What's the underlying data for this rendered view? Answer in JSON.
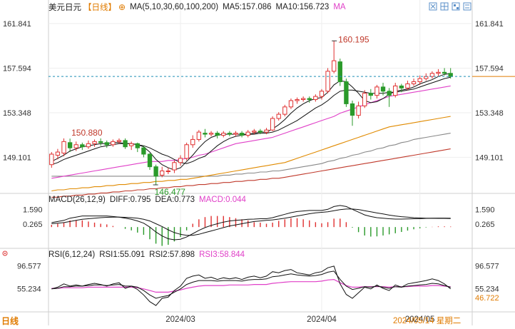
{
  "header": {
    "pair": "美元日元",
    "period": "【日线】",
    "ma_label": "MA(5,10,30,60,100,200)",
    "ma5": "MA5:157.086",
    "ma10": "MA10:156.723",
    "ma_more": "MA"
  },
  "macd_header": {
    "label": "MACD(26,12,9)",
    "diff": "DIFF:0.795",
    "dea": "DEA:0.773",
    "macd": "MACD:0.044"
  },
  "rsi_header": {
    "label": "RSI(6,12,24)",
    "rsi1": "RSI1:55.091",
    "rsi2": "RSI2:57.898",
    "rsi3": "RSI3:58.844"
  },
  "bottom": {
    "logo": "日线",
    "date_tail": "2024/05/14 星期二"
  },
  "colors": {
    "up": "#e03030",
    "down": "#2a9a2a",
    "ma5": "#111111",
    "ma10": "#111111",
    "ma30": "#e040c8",
    "ma60": "#e08a00",
    "ma100": "#888888",
    "ma200": "#c0392b",
    "dashed": "#1e8fb5",
    "orange": "#e07b00"
  },
  "icons": [
    "chart-type-icon",
    "grid-icon",
    "layout-icon",
    "settings-icon"
  ],
  "chart_data": [
    {
      "type": "candlestick",
      "title": "美元日元 日线",
      "y_ticks": [
        "161.841",
        "157.594",
        "153.348",
        "149.101"
      ],
      "y_ticks_values": [
        161.841,
        157.594,
        153.348,
        149.101
      ],
      "ylim": [
        146.0,
        163.0
      ],
      "x_labels": [
        "2024/03",
        "2024/04",
        "2024/05"
      ],
      "annotations": [
        {
          "label": "160.195",
          "value": 160.195,
          "type": "high"
        },
        {
          "label": "150.880",
          "value": 150.88,
          "type": "high"
        },
        {
          "label": "146.477",
          "value": 146.477,
          "type": "low"
        }
      ],
      "current_price": 156.8,
      "candles": [
        [
          148.4,
          149.4,
          148.1,
          149.6
        ],
        [
          149.3,
          149.6,
          148.9,
          149.9
        ],
        [
          149.5,
          150.6,
          149.2,
          150.9
        ],
        [
          150.5,
          150.0,
          149.6,
          150.88
        ],
        [
          150.0,
          150.3,
          149.7,
          150.6
        ],
        [
          150.3,
          150.1,
          149.8,
          150.5
        ],
        [
          150.1,
          150.4,
          149.9,
          150.7
        ],
        [
          150.4,
          150.6,
          150.1,
          150.8
        ],
        [
          150.6,
          150.5,
          150.2,
          150.9
        ],
        [
          150.5,
          150.3,
          150.0,
          150.7
        ],
        [
          150.3,
          150.6,
          150.1,
          150.8
        ],
        [
          150.6,
          150.7,
          150.4,
          150.9
        ],
        [
          150.7,
          150.1,
          149.9,
          150.9
        ],
        [
          150.2,
          150.4,
          149.8,
          150.6
        ],
        [
          150.4,
          150.0,
          149.6,
          150.5
        ],
        [
          150.0,
          149.4,
          149.1,
          150.2
        ],
        [
          149.4,
          148.2,
          147.9,
          149.5
        ],
        [
          148.2,
          147.3,
          146.477,
          148.4
        ],
        [
          147.4,
          147.8,
          147.2,
          148.2
        ],
        [
          147.8,
          147.8,
          147.5,
          148.1
        ],
        [
          147.9,
          148.6,
          147.6,
          148.8
        ],
        [
          148.6,
          149.0,
          148.3,
          149.3
        ],
        [
          149.0,
          150.3,
          148.8,
          150.5
        ],
        [
          150.3,
          150.8,
          150.0,
          151.2
        ],
        [
          150.8,
          151.5,
          150.6,
          151.7
        ],
        [
          151.4,
          151.3,
          151.0,
          151.8
        ],
        [
          151.3,
          151.4,
          151.1,
          151.6
        ],
        [
          151.4,
          151.2,
          150.9,
          151.6
        ],
        [
          151.2,
          151.4,
          151.0,
          151.6
        ],
        [
          151.4,
          151.3,
          151.1,
          151.6
        ],
        [
          151.3,
          151.4,
          151.1,
          151.6
        ],
        [
          151.4,
          151.2,
          151.0,
          151.6
        ],
        [
          151.2,
          151.5,
          151.0,
          151.7
        ],
        [
          151.5,
          151.6,
          151.3,
          151.8
        ],
        [
          151.6,
          151.5,
          151.3,
          151.8
        ],
        [
          151.5,
          151.7,
          151.3,
          151.9
        ],
        [
          151.7,
          152.8,
          151.6,
          153.0
        ],
        [
          152.8,
          153.2,
          152.6,
          153.4
        ],
        [
          153.2,
          153.9,
          153.0,
          154.1
        ],
        [
          153.9,
          154.5,
          153.7,
          154.7
        ],
        [
          154.5,
          154.6,
          154.2,
          154.8
        ],
        [
          154.6,
          154.7,
          154.4,
          154.9
        ],
        [
          154.7,
          154.6,
          154.3,
          154.9
        ],
        [
          154.6,
          154.9,
          154.4,
          155.1
        ],
        [
          154.9,
          155.4,
          154.6,
          155.6
        ],
        [
          155.4,
          157.3,
          155.2,
          157.6
        ],
        [
          157.3,
          158.3,
          157.1,
          160.195
        ],
        [
          158.2,
          156.3,
          155.9,
          158.5
        ],
        [
          156.3,
          154.2,
          153.9,
          156.6
        ],
        [
          154.2,
          153.1,
          152.1,
          154.5
        ],
        [
          153.1,
          154.0,
          152.8,
          154.4
        ],
        [
          154.0,
          155.2,
          153.8,
          155.5
        ],
        [
          155.2,
          155.0,
          154.6,
          155.6
        ],
        [
          155.0,
          155.8,
          154.7,
          156.0
        ],
        [
          155.8,
          155.4,
          155.0,
          156.2
        ],
        [
          155.4,
          155.0,
          153.9,
          155.7
        ],
        [
          155.0,
          155.9,
          154.8,
          156.2
        ],
        [
          155.9,
          155.7,
          155.3,
          156.1
        ],
        [
          155.7,
          156.1,
          155.5,
          156.4
        ],
        [
          156.1,
          156.3,
          155.9,
          156.6
        ],
        [
          156.3,
          156.6,
          156.0,
          156.9
        ],
        [
          156.6,
          156.8,
          156.4,
          157.1
        ],
        [
          156.8,
          157.1,
          156.6,
          157.3
        ],
        [
          157.1,
          157.2,
          156.8,
          157.5
        ],
        [
          157.2,
          157.1,
          156.9,
          157.6
        ],
        [
          157.1,
          156.8,
          156.6,
          157.6
        ]
      ],
      "candle_fields": [
        "open",
        "close",
        "low",
        "high"
      ],
      "ma_lines": {
        "ma5": [
          148.7,
          149.0,
          149.3,
          149.7,
          149.9,
          150.1,
          150.2,
          150.3,
          150.4,
          150.4,
          150.5,
          150.5,
          150.4,
          150.4,
          150.3,
          150.1,
          149.6,
          148.9,
          148.4,
          148.1,
          147.9,
          148.1,
          148.7,
          149.3,
          150.0,
          150.6,
          151.0,
          151.2,
          151.3,
          151.3,
          151.3,
          151.3,
          151.3,
          151.4,
          151.5,
          151.5,
          151.8,
          152.2,
          152.7,
          153.3,
          153.8,
          154.2,
          154.5,
          154.7,
          154.8,
          155.3,
          156.0,
          156.4,
          156.3,
          155.8,
          155.2,
          154.5,
          154.3,
          154.4,
          154.7,
          155.1,
          155.4,
          155.5,
          155.6,
          155.8,
          156.1,
          156.3,
          156.5,
          156.8,
          157.0,
          157.086
        ],
        "ma10": [
          148.4,
          148.6,
          148.9,
          149.1,
          149.3,
          149.5,
          149.7,
          149.9,
          150.1,
          150.2,
          150.3,
          150.4,
          150.4,
          150.4,
          150.3,
          150.2,
          150.0,
          149.7,
          149.4,
          149.2,
          148.9,
          148.6,
          148.5,
          148.7,
          149.0,
          149.2,
          149.7,
          150.2,
          150.6,
          150.9,
          151.1,
          151.2,
          151.3,
          151.3,
          151.4,
          151.4,
          151.5,
          151.7,
          152.0,
          152.3,
          152.6,
          153.0,
          153.4,
          153.8,
          154.1,
          154.5,
          155.0,
          155.4,
          155.5,
          155.5,
          155.4,
          155.3,
          155.2,
          155.2,
          155.2,
          155.3,
          155.3,
          155.4,
          155.5,
          155.6,
          155.8,
          156.0,
          156.2,
          156.4,
          156.6,
          156.723
        ],
        "ma30": [
          147.1,
          147.2,
          147.3,
          147.4,
          147.5,
          147.6,
          147.7,
          147.8,
          147.9,
          148.0,
          148.1,
          148.2,
          148.3,
          148.4,
          148.5,
          148.6,
          148.7,
          148.7,
          148.7,
          148.8,
          148.8,
          148.9,
          149.0,
          149.1,
          149.3,
          149.4,
          149.6,
          149.8,
          150.0,
          150.2,
          150.4,
          150.5,
          150.6,
          150.7,
          150.8,
          150.9,
          151.0,
          151.2,
          151.4,
          151.6,
          151.8,
          152.0,
          152.2,
          152.4,
          152.6,
          152.8,
          153.0,
          153.3,
          153.5,
          153.7,
          153.9,
          154.1,
          154.3,
          154.5,
          154.7,
          154.9,
          155.0,
          155.1,
          155.2,
          155.3,
          155.4,
          155.5,
          155.6,
          155.7,
          155.8,
          155.9
        ],
        "ma60": [
          145.9,
          146.0,
          146.0,
          146.1,
          146.1,
          146.2,
          146.2,
          146.3,
          146.3,
          146.4,
          146.4,
          146.5,
          146.5,
          146.6,
          146.6,
          146.7,
          146.7,
          146.8,
          146.8,
          146.9,
          146.9,
          147.0,
          147.0,
          147.1,
          147.2,
          147.3,
          147.4,
          147.5,
          147.6,
          147.7,
          147.8,
          147.9,
          148.0,
          148.1,
          148.2,
          148.3,
          148.4,
          148.5,
          148.6,
          148.8,
          149.0,
          149.2,
          149.4,
          149.6,
          149.8,
          150.0,
          150.2,
          150.4,
          150.6,
          150.8,
          151.0,
          151.2,
          151.4,
          151.6,
          151.8,
          152.0,
          152.1,
          152.2,
          152.3,
          152.4,
          152.5,
          152.6,
          152.7,
          152.8,
          152.9,
          153.0
        ],
        "ma100": [
          147.3,
          147.3,
          147.3,
          147.3,
          147.3,
          147.3,
          147.3,
          147.3,
          147.3,
          147.3,
          147.3,
          147.3,
          147.3,
          147.3,
          147.3,
          147.3,
          147.3,
          147.3,
          147.3,
          147.3,
          147.3,
          147.3,
          147.3,
          147.3,
          147.3,
          147.3,
          147.3,
          147.3,
          147.4,
          147.4,
          147.5,
          147.5,
          147.6,
          147.6,
          147.7,
          147.7,
          147.8,
          147.8,
          147.9,
          148.0,
          148.1,
          148.2,
          148.3,
          148.4,
          148.5,
          148.7,
          148.8,
          149.0,
          149.1,
          149.3,
          149.4,
          149.6,
          149.7,
          149.9,
          150.0,
          150.2,
          150.3,
          150.5,
          150.6,
          150.8,
          150.9,
          151.0,
          151.1,
          151.2,
          151.3,
          151.4
        ],
        "ma200": [
          145.3,
          145.3,
          145.4,
          145.4,
          145.5,
          145.5,
          145.6,
          145.6,
          145.7,
          145.7,
          145.8,
          145.8,
          145.9,
          145.9,
          146.0,
          146.0,
          146.1,
          146.1,
          146.2,
          146.2,
          146.3,
          146.3,
          146.4,
          146.4,
          146.5,
          146.5,
          146.6,
          146.6,
          146.7,
          146.7,
          146.8,
          146.8,
          146.9,
          146.9,
          147.0,
          147.0,
          147.1,
          147.1,
          147.2,
          147.3,
          147.4,
          147.5,
          147.6,
          147.7,
          147.8,
          147.9,
          148.0,
          148.1,
          148.2,
          148.3,
          148.4,
          148.5,
          148.6,
          148.7,
          148.8,
          148.9,
          149.0,
          149.1,
          149.2,
          149.3,
          149.4,
          149.5,
          149.6,
          149.7,
          149.8,
          149.9
        ]
      }
    },
    {
      "type": "macd",
      "y_ticks": [
        "1.590",
        "0.265"
      ],
      "y_ticks_values": [
        1.59,
        0.265
      ],
      "ylim": [
        -1.6,
        2.2
      ],
      "diff": [
        0.4,
        0.5,
        0.6,
        0.8,
        0.9,
        1.0,
        1.0,
        1.0,
        1.0,
        1.0,
        0.95,
        0.9,
        0.8,
        0.7,
        0.55,
        0.35,
        0.0,
        -0.45,
        -0.8,
        -1.05,
        -1.15,
        -1.1,
        -0.9,
        -0.6,
        -0.3,
        -0.05,
        0.15,
        0.3,
        0.45,
        0.55,
        0.6,
        0.65,
        0.7,
        0.72,
        0.75,
        0.75,
        0.85,
        1.0,
        1.15,
        1.3,
        1.4,
        1.45,
        1.5,
        1.5,
        1.5,
        1.6,
        1.85,
        1.95,
        1.85,
        1.6,
        1.35,
        1.1,
        0.95,
        0.85,
        0.8,
        0.75,
        0.72,
        0.72,
        0.73,
        0.75,
        0.76,
        0.78,
        0.8,
        0.81,
        0.81,
        0.795
      ],
      "dea": [
        0.3,
        0.35,
        0.4,
        0.5,
        0.6,
        0.7,
        0.75,
        0.8,
        0.85,
        0.88,
        0.9,
        0.9,
        0.88,
        0.85,
        0.8,
        0.7,
        0.55,
        0.3,
        0.05,
        -0.25,
        -0.5,
        -0.65,
        -0.75,
        -0.75,
        -0.65,
        -0.5,
        -0.35,
        -0.2,
        -0.05,
        0.1,
        0.2,
        0.3,
        0.4,
        0.5,
        0.55,
        0.6,
        0.65,
        0.72,
        0.8,
        0.9,
        1.0,
        1.1,
        1.2,
        1.28,
        1.33,
        1.38,
        1.47,
        1.57,
        1.63,
        1.63,
        1.58,
        1.48,
        1.38,
        1.27,
        1.18,
        1.08,
        1.0,
        0.94,
        0.89,
        0.85,
        0.82,
        0.8,
        0.79,
        0.78,
        0.78,
        0.773
      ],
      "hist_label": "MACD"
    },
    {
      "type": "rsi",
      "y_ticks": [
        "96.577",
        "55.234"
      ],
      "y_ticks_values": [
        96.577,
        55.234
      ],
      "ylim": [
        20,
        110
      ],
      "rsi1": [
        55,
        58,
        64,
        60,
        62,
        60,
        63,
        65,
        63,
        60,
        64,
        66,
        56,
        60,
        54,
        44,
        32,
        25,
        38,
        40,
        52,
        60,
        74,
        78,
        80,
        74,
        76,
        72,
        75,
        73,
        75,
        72,
        76,
        78,
        75,
        78,
        86,
        84,
        88,
        90,
        84,
        82,
        80,
        84,
        86,
        93,
        96,
        64,
        45,
        38,
        48,
        58,
        55,
        62,
        56,
        52,
        62,
        58,
        64,
        66,
        68,
        70,
        73,
        70,
        64,
        55.091
      ],
      "rsi2": [
        55,
        56,
        59,
        59,
        60,
        60,
        61,
        62,
        62,
        61,
        62,
        63,
        60,
        60,
        58,
        52,
        44,
        38,
        41,
        43,
        49,
        55,
        63,
        67,
        70,
        70,
        70,
        69,
        70,
        70,
        70,
        69,
        71,
        72,
        72,
        73,
        77,
        78,
        80,
        82,
        80,
        79,
        78,
        79,
        81,
        85,
        87,
        72,
        60,
        54,
        56,
        59,
        58,
        60,
        58,
        56,
        59,
        58,
        60,
        61,
        62,
        63,
        65,
        64,
        61,
        57.898
      ],
      "rsi3": [
        56,
        56,
        57,
        57,
        57,
        57,
        58,
        58,
        58,
        58,
        58,
        58,
        58,
        58,
        57,
        55,
        52,
        49,
        49,
        49,
        51,
        53,
        56,
        58,
        60,
        61,
        61,
        61,
        61,
        62,
        62,
        62,
        62,
        63,
        63,
        63,
        65,
        66,
        67,
        68,
        68,
        68,
        68,
        68,
        69,
        71,
        72,
        66,
        61,
        58,
        58,
        59,
        59,
        59,
        59,
        58,
        59,
        59,
        59,
        60,
        60,
        60,
        61,
        61,
        60,
        58.844
      ],
      "right_value": "46.722"
    }
  ]
}
